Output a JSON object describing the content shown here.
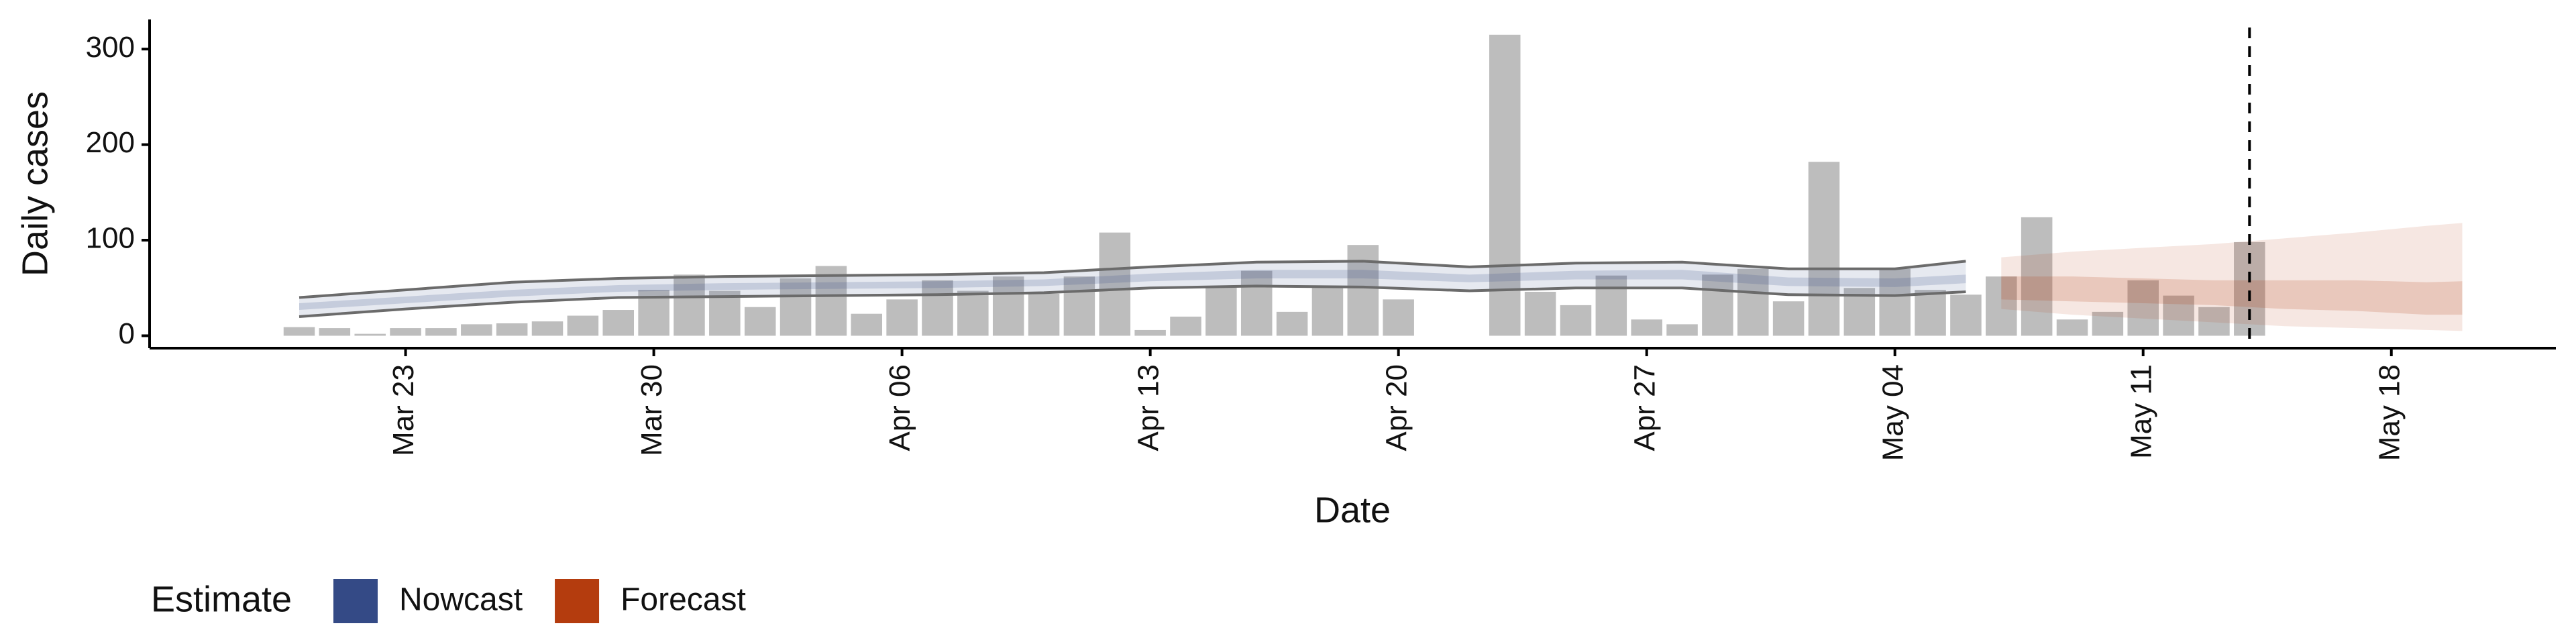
{
  "chart_data": {
    "type": "bar",
    "x_label": "Date",
    "y_label": "Daily cases",
    "categories": [
      "Mar 20",
      "Mar 21",
      "Mar 22",
      "Mar 23",
      "Mar 24",
      "Mar 25",
      "Mar 26",
      "Mar 27",
      "Mar 28",
      "Mar 29",
      "Mar 30",
      "Mar 31",
      "Apr 01",
      "Apr 02",
      "Apr 03",
      "Apr 04",
      "Apr 05",
      "Apr 06",
      "Apr 07",
      "Apr 08",
      "Apr 09",
      "Apr 10",
      "Apr 11",
      "Apr 12",
      "Apr 13",
      "Apr 14",
      "Apr 15",
      "Apr 16",
      "Apr 17",
      "Apr 18",
      "Apr 19",
      "Apr 20",
      "Apr 21",
      "Apr 22",
      "Apr 23",
      "Apr 24",
      "Apr 25",
      "Apr 26",
      "Apr 27",
      "Apr 28",
      "Apr 29",
      "Apr 30",
      "May 01",
      "May 02",
      "May 03",
      "May 04",
      "May 05",
      "May 06",
      "May 07",
      "May 08",
      "May 09",
      "May 10",
      "May 11",
      "May 12",
      "May 13",
      "May 14",
      "May 15",
      "May 16",
      "May 17",
      "May 18",
      "May 19",
      "May 20"
    ],
    "values": [
      9,
      8,
      2,
      8,
      8,
      12,
      13,
      15,
      21,
      27,
      48,
      64,
      47,
      30,
      60,
      73,
      23,
      38,
      58,
      47,
      62,
      44,
      62,
      108,
      6,
      20,
      52,
      68,
      25,
      52,
      95,
      38,
      0,
      0,
      315,
      46,
      32,
      63,
      17,
      12,
      64,
      70,
      36,
      182,
      50,
      70,
      48,
      43,
      62,
      124,
      17,
      25,
      58,
      42,
      30,
      98,
      null,
      null,
      null,
      null,
      null,
      null
    ],
    "color": "#bdbdbd",
    "bands": [
      {
        "name": "Nowcast",
        "color": "#344a86",
        "outline_color": "#6b6b6b",
        "x": [
          "Mar 20",
          "Mar 23",
          "Mar 26",
          "Mar 29",
          "Apr 01",
          "Apr 04",
          "Apr 07",
          "Apr 10",
          "Apr 13",
          "Apr 16",
          "Apr 19",
          "Apr 22",
          "Apr 25",
          "Apr 28",
          "May 01",
          "May 04",
          "May 06"
        ],
        "upper": [
          40,
          48,
          56,
          60,
          62,
          63,
          64,
          66,
          72,
          77,
          78,
          72,
          76,
          77,
          70,
          70,
          78
        ],
        "lower": [
          20,
          28,
          35,
          40,
          41,
          42,
          43,
          45,
          50,
          52,
          51,
          47,
          50,
          50,
          43,
          42,
          46
        ],
        "inner_upper": [
          34,
          41,
          48,
          53,
          55,
          56,
          57,
          59,
          65,
          69,
          69,
          64,
          68,
          69,
          61,
          60,
          64
        ],
        "inner_lower": [
          27,
          34,
          41,
          46,
          48,
          49,
          50,
          52,
          57,
          60,
          60,
          56,
          59,
          59,
          52,
          51,
          55
        ]
      },
      {
        "name": "Forecast",
        "color": "#b43c0e",
        "x": [
          "May 07",
          "May 09",
          "May 11",
          "May 13",
          "May 15",
          "May 17",
          "May 19",
          "May 20"
        ],
        "upper": [
          82,
          88,
          92,
          96,
          102,
          108,
          115,
          118
        ],
        "lower": [
          28,
          22,
          18,
          14,
          10,
          8,
          6,
          5
        ],
        "inner_upper": [
          62,
          62,
          60,
          58,
          58,
          58,
          56,
          57
        ],
        "inner_lower": [
          38,
          36,
          34,
          32,
          28,
          26,
          22,
          22
        ]
      }
    ],
    "vline": "May 14",
    "ylim": [
      -13,
      331
    ],
    "yticks": [
      0,
      100,
      200,
      300
    ],
    "xticks": [
      "Mar 23",
      "Mar 30",
      "Apr 06",
      "Apr 13",
      "Apr 20",
      "Apr 27",
      "May 04",
      "May 11",
      "May 18"
    ],
    "legend_title": "Estimate",
    "legend_position": "bottom-left"
  }
}
